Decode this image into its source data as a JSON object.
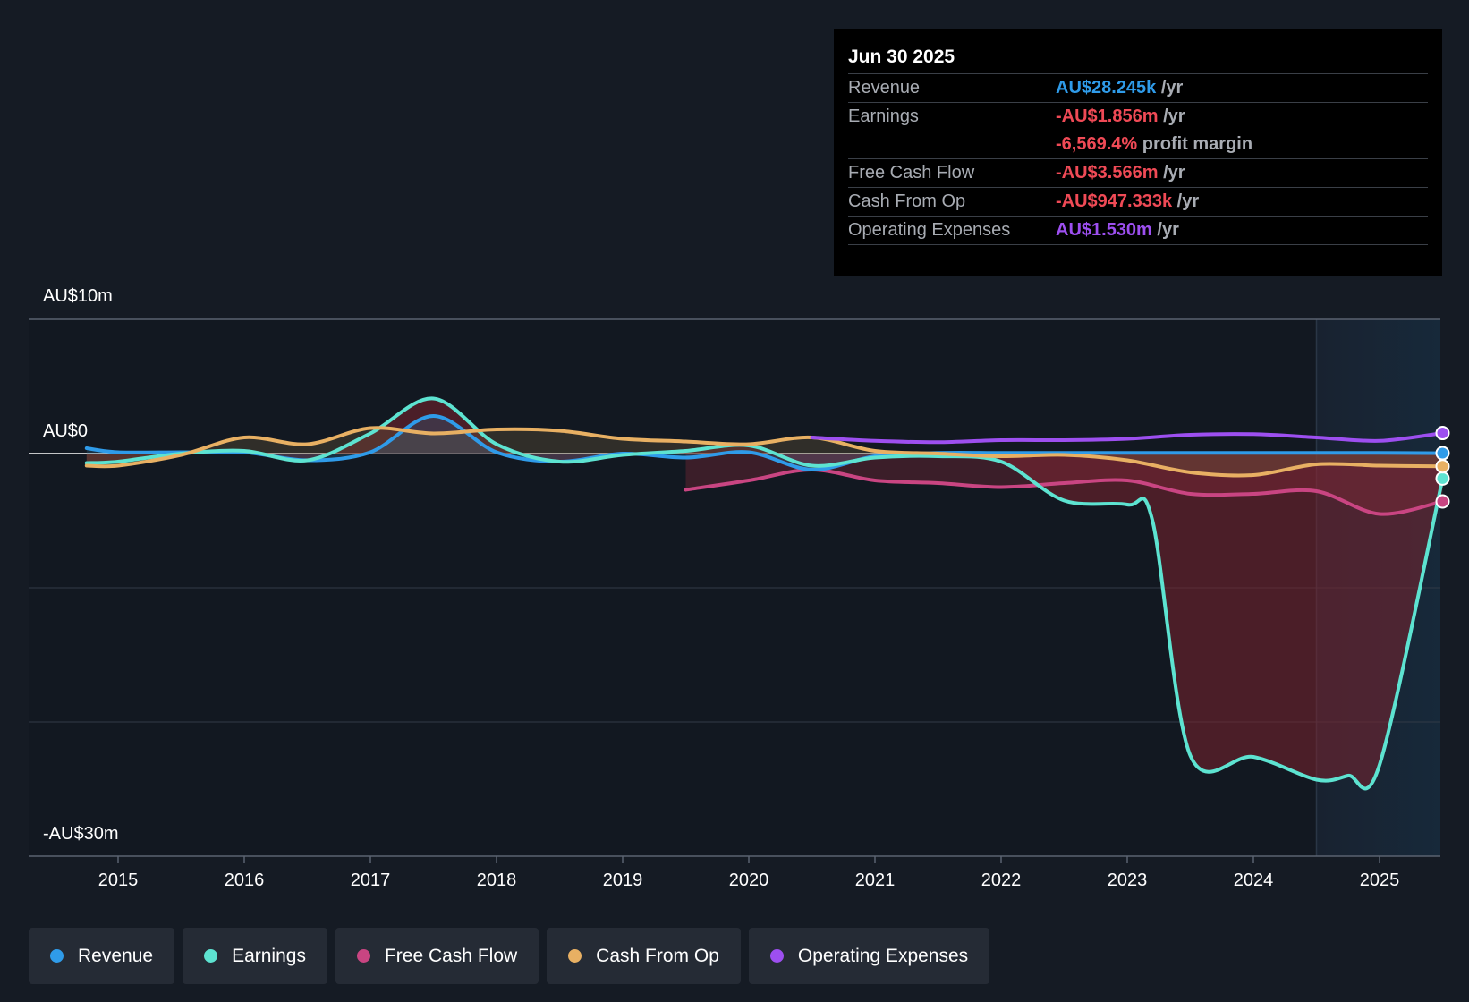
{
  "colors": {
    "background": "#151b24",
    "revenue": "#2f9be9",
    "earnings": "#5de3d1",
    "fcf": "#c94582",
    "cfo": "#e8b063",
    "opex": "#9d4ff0",
    "negative_text": "#f04a56",
    "forecast_band": "#17293a"
  },
  "y_axis": {
    "top_label": "AU$10m",
    "zero_label": "AU$0",
    "bottom_label": "-AU$30m"
  },
  "tooltip": {
    "date": "Jun 30 2025",
    "rows": [
      {
        "label": "Revenue",
        "value": "AU$28.245k",
        "suffix": "/yr",
        "color": "#2f9be9"
      },
      {
        "label": "Earnings",
        "value": "-AU$1.856m",
        "suffix": "/yr",
        "color": "#f04a56",
        "extra_value": "-6,569.4%",
        "extra_suffix": "profit margin"
      },
      {
        "label": "Free Cash Flow",
        "value": "-AU$3.566m",
        "suffix": "/yr",
        "color": "#f04a56"
      },
      {
        "label": "Cash From Op",
        "value": "-AU$947.333k",
        "suffix": "/yr",
        "color": "#f04a56"
      },
      {
        "label": "Operating Expenses",
        "value": "AU$1.530m",
        "suffix": "/yr",
        "color": "#9d4ff0"
      }
    ]
  },
  "legend": [
    {
      "label": "Revenue",
      "color": "#2f9be9"
    },
    {
      "label": "Earnings",
      "color": "#5de3d1"
    },
    {
      "label": "Free Cash Flow",
      "color": "#c94582"
    },
    {
      "label": "Cash From Op",
      "color": "#e8b063"
    },
    {
      "label": "Operating Expenses",
      "color": "#9d4ff0"
    }
  ],
  "chart_data": {
    "type": "line",
    "title": "",
    "xlabel": "",
    "ylabel": "",
    "unit": "AU$m",
    "xlim": [
      2014.3,
      2025.5
    ],
    "ylim": [
      -30,
      10
    ],
    "x_ticks": [
      2015,
      2016,
      2017,
      2018,
      2019,
      2020,
      2021,
      2022,
      2023,
      2024,
      2025
    ],
    "y_gridlines": [
      10,
      0,
      -10,
      -20,
      -30
    ],
    "forecast_region_start": 2024.5,
    "legend_position": "bottom",
    "series": [
      {
        "name": "Revenue",
        "key": "revenue",
        "x": [
          2014.75,
          2015.0,
          2015.5,
          2016.0,
          2016.5,
          2017.0,
          2017.5,
          2018.0,
          2018.5,
          2019.0,
          2019.5,
          2020.0,
          2020.5,
          2021.0,
          2021.5,
          2022.0,
          2022.5,
          2023.0,
          2023.5,
          2024.0,
          2024.5,
          2025.0,
          2025.5
        ],
        "y": [
          0.4,
          0.1,
          0.1,
          0.1,
          -0.5,
          0.1,
          2.8,
          0.1,
          -0.6,
          0.0,
          -0.3,
          0.1,
          -1.2,
          -0.2,
          0.05,
          0.05,
          0.05,
          0.05,
          0.05,
          0.05,
          0.05,
          0.05,
          0.03
        ]
      },
      {
        "name": "Earnings",
        "key": "earnings",
        "x": [
          2014.75,
          2015.0,
          2015.5,
          2016.0,
          2016.5,
          2017.0,
          2017.5,
          2018.0,
          2018.5,
          2019.0,
          2019.5,
          2020.0,
          2020.5,
          2021.0,
          2021.5,
          2022.0,
          2022.5,
          2023.0,
          2023.2,
          2023.5,
          2024.0,
          2024.5,
          2024.75,
          2025.0,
          2025.5
        ],
        "y": [
          -0.7,
          -0.6,
          0.0,
          0.2,
          -0.5,
          1.5,
          4.1,
          0.7,
          -0.6,
          -0.1,
          0.2,
          0.6,
          -0.9,
          -0.3,
          -0.2,
          -0.6,
          -3.5,
          -3.8,
          -5.0,
          -22.5,
          -22.6,
          -24.3,
          -24.0,
          -23.2,
          -1.856
        ]
      },
      {
        "name": "Free Cash Flow",
        "key": "fcf",
        "x": [
          2019.5,
          2020.0,
          2020.5,
          2021.0,
          2021.5,
          2022.0,
          2022.5,
          2023.0,
          2023.5,
          2024.0,
          2024.5,
          2025.0,
          2025.5
        ],
        "y": [
          -2.7,
          -2.0,
          -1.2,
          -2.0,
          -2.2,
          -2.5,
          -2.2,
          -2.0,
          -3.0,
          -3.0,
          -2.8,
          -4.5,
          -3.566
        ]
      },
      {
        "name": "Cash From Op",
        "key": "cfo",
        "x": [
          2014.75,
          2015.0,
          2015.5,
          2016.0,
          2016.5,
          2017.0,
          2017.5,
          2018.0,
          2018.5,
          2019.0,
          2019.5,
          2020.0,
          2020.5,
          2021.0,
          2021.5,
          2022.0,
          2022.5,
          2023.0,
          2023.5,
          2024.0,
          2024.5,
          2025.0,
          2025.5
        ],
        "y": [
          -0.9,
          -0.9,
          -0.1,
          1.2,
          0.7,
          1.9,
          1.5,
          1.8,
          1.7,
          1.1,
          0.9,
          0.7,
          1.2,
          0.2,
          0.0,
          -0.2,
          -0.1,
          -0.5,
          -1.4,
          -1.6,
          -0.8,
          -0.9,
          -0.947
        ]
      },
      {
        "name": "Operating Expenses",
        "key": "opex",
        "x": [
          2020.5,
          2021.0,
          2021.5,
          2022.0,
          2022.5,
          2023.0,
          2023.5,
          2024.0,
          2024.5,
          2025.0,
          2025.5
        ],
        "y": [
          1.2,
          0.95,
          0.85,
          1.0,
          1.0,
          1.1,
          1.4,
          1.45,
          1.2,
          0.95,
          1.53
        ]
      }
    ]
  }
}
